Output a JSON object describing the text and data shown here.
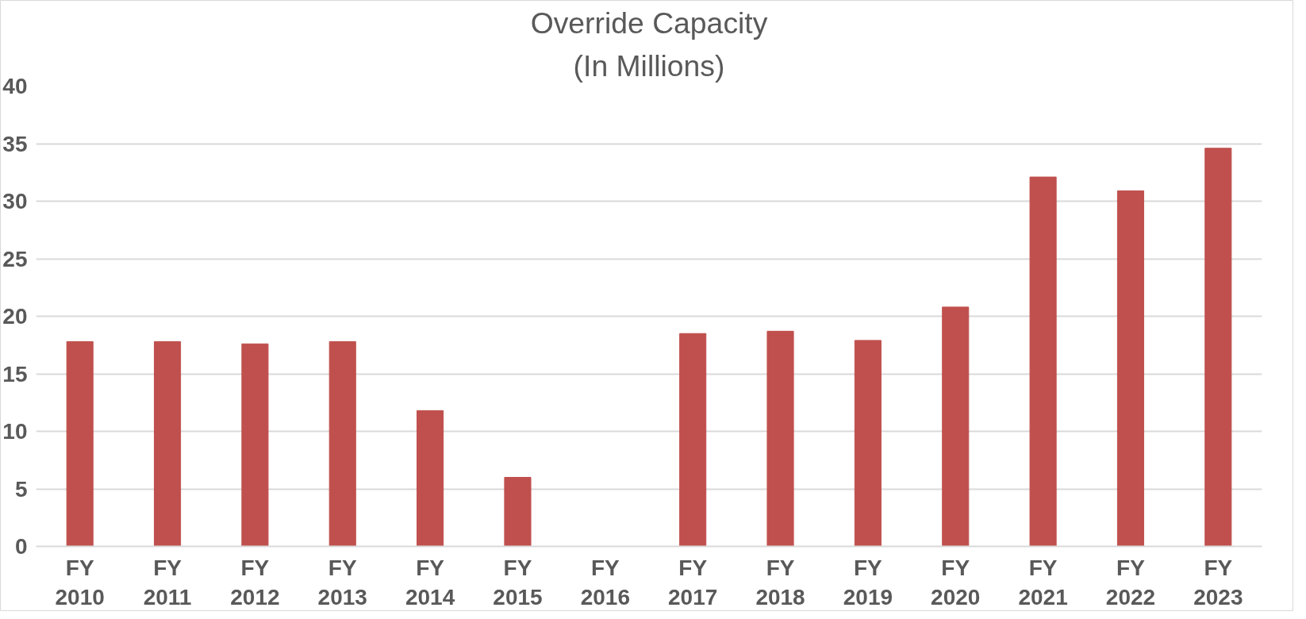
{
  "chart_data": {
    "type": "bar",
    "title": "Override Capacity",
    "subtitle": "(In Millions)",
    "categories": [
      "FY\n2010",
      "FY\n2011",
      "FY\n2012",
      "FY\n2013",
      "FY\n2014",
      "FY\n2015",
      "FY\n2016",
      "FY\n2017",
      "FY\n2018",
      "FY\n2019",
      "FY\n2020",
      "FY\n2021",
      "FY\n2022",
      "FY\n2023"
    ],
    "values": [
      17.8,
      17.8,
      17.6,
      17.8,
      11.8,
      6.0,
      0,
      18.5,
      18.7,
      17.9,
      20.8,
      32.1,
      30.9,
      34.6
    ],
    "color": "#c0504d",
    "ylim": [
      0,
      40
    ],
    "yticks": [
      0,
      5,
      10,
      15,
      20,
      25,
      30,
      35,
      40
    ],
    "grid": "y"
  }
}
